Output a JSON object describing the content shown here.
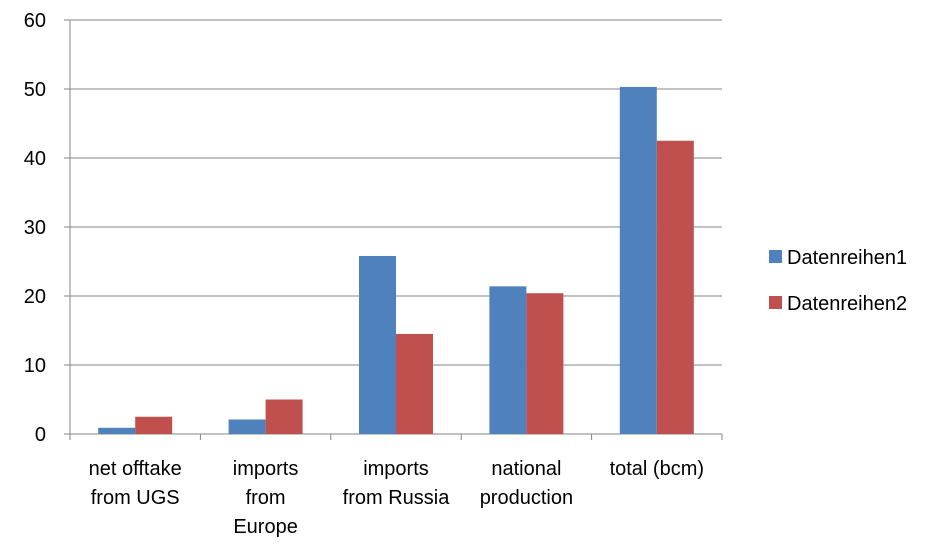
{
  "chart_data": {
    "type": "bar",
    "categories": [
      [
        "net offtake",
        "from UGS"
      ],
      [
        "imports",
        "from",
        "Europe"
      ],
      [
        "imports",
        "from Russia"
      ],
      [
        "national",
        "production"
      ],
      [
        "total (bcm)"
      ]
    ],
    "series": [
      {
        "name": "Datenreihen1",
        "color": "#4F81BD",
        "values": [
          0.9,
          2.1,
          25.8,
          21.4,
          50.3
        ]
      },
      {
        "name": "Datenreihen2",
        "color": "#C0504D",
        "values": [
          2.5,
          5.0,
          14.5,
          20.4,
          42.5
        ]
      }
    ],
    "yticks": [
      "0",
      "10",
      "20",
      "30",
      "40",
      "50",
      "60"
    ],
    "ylim": [
      0,
      60
    ],
    "grid": true,
    "legend": "right",
    "title": "",
    "xlabel": "",
    "ylabel": ""
  }
}
